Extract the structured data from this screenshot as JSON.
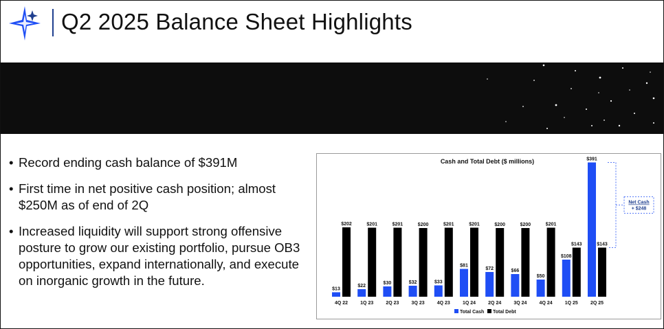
{
  "header": {
    "title": "Q2 2025 Balance Sheet Highlights",
    "logo_icon": "star-logo-icon",
    "accent_color": "#1f3f8f"
  },
  "bullets": [
    "Record ending cash balance of $391M",
    "First time in net positive cash position; almost $250M as of end of 2Q",
    "Increased liquidity will support strong offensive posture to grow our existing portfolio, pursue OB3 opportunities, expand internationally, and execute on inorganic growth in the future."
  ],
  "bullet_symbol": "•",
  "chart_data": {
    "type": "bar",
    "title": "Cash and Total Debt ($ millions)",
    "xlabel": "",
    "ylabel": "",
    "ylim": [
      0,
      400
    ],
    "grid": false,
    "legend_position": "bottom",
    "categories": [
      "4Q 22",
      "1Q 23",
      "2Q 23",
      "3Q 23",
      "4Q 23",
      "1Q 24",
      "2Q 24",
      "3Q 24",
      "4Q 24",
      "1Q 25",
      "2Q 25"
    ],
    "series": [
      {
        "name": "Total Cash",
        "color": "#1f4ef5",
        "values": [
          13,
          22,
          30,
          32,
          33,
          81,
          72,
          66,
          50,
          108,
          391
        ],
        "labels": [
          "$13",
          "$22",
          "$30",
          "$32",
          "$33",
          "$81",
          "$72",
          "$66",
          "$50",
          "$108",
          "$391"
        ]
      },
      {
        "name": "Total Debt",
        "color": "#000000",
        "values": [
          202,
          201,
          201,
          200,
          201,
          201,
          200,
          200,
          201,
          143,
          143
        ],
        "labels": [
          "$202",
          "$201",
          "$201",
          "$200",
          "$201",
          "$201",
          "$200",
          "$200",
          "$201",
          "$143",
          "$143"
        ]
      }
    ],
    "annotation": {
      "label": "Net Cash",
      "value": "+ $248",
      "color": "#1f4ef5"
    }
  }
}
